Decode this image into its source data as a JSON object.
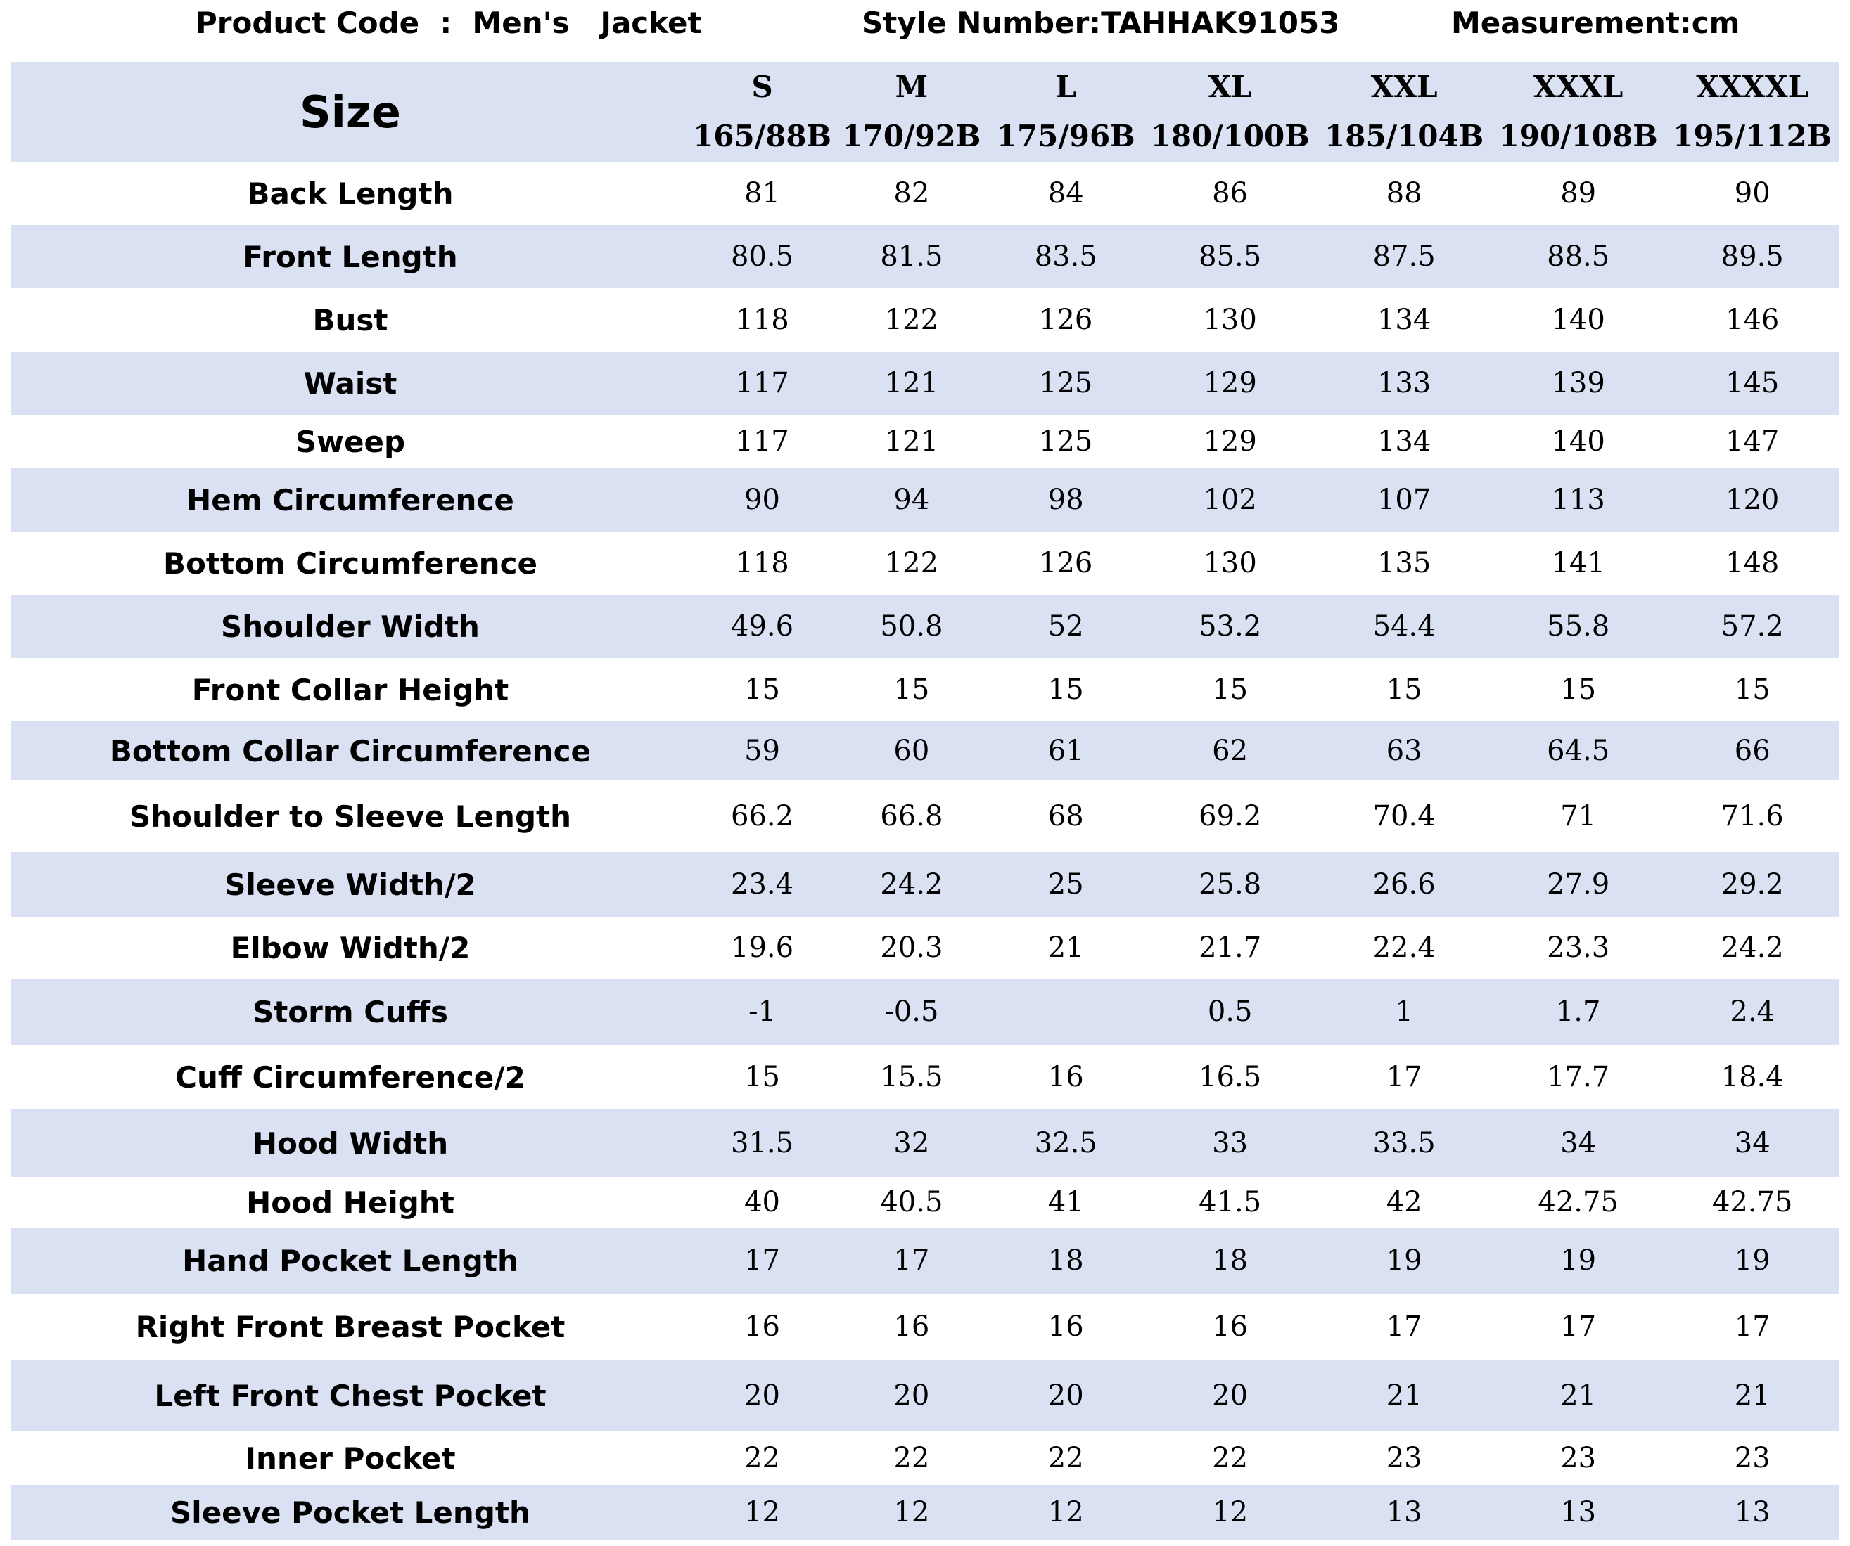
{
  "header": {
    "product_code": "Product Code  :  Men's   Jacket",
    "style_number": "Style Number:TAHHAK91053",
    "measurement": "Measurement:cm"
  },
  "table": {
    "size_label": "Size",
    "sizes": [
      {
        "name": "S",
        "spec": "165/88B"
      },
      {
        "name": "M",
        "spec": "170/92B"
      },
      {
        "name": "L",
        "spec": "175/96B"
      },
      {
        "name": "XL",
        "spec": "180/100B"
      },
      {
        "name": "XXL",
        "spec": "185/104B"
      },
      {
        "name": "XXXL",
        "spec": "190/108B"
      },
      {
        "name": "XXXXL",
        "spec": "195/112B"
      }
    ],
    "rows": [
      {
        "label": "Back Length",
        "values": [
          "81",
          "82",
          "84",
          "86",
          "88",
          "89",
          "90"
        ]
      },
      {
        "label": "Front Length",
        "values": [
          "80.5",
          "81.5",
          "83.5",
          "85.5",
          "87.5",
          "88.5",
          "89.5"
        ]
      },
      {
        "label": "Bust",
        "values": [
          "118",
          "122",
          "126",
          "130",
          "134",
          "140",
          "146"
        ]
      },
      {
        "label": "Waist",
        "values": [
          "117",
          "121",
          "125",
          "129",
          "133",
          "139",
          "145"
        ]
      },
      {
        "label": "Sweep",
        "values": [
          "117",
          "121",
          "125",
          "129",
          "134",
          "140",
          "147"
        ]
      },
      {
        "label": "Hem Circumference",
        "values": [
          "90",
          "94",
          "98",
          "102",
          "107",
          "113",
          "120"
        ]
      },
      {
        "label": "Bottom Circumference",
        "values": [
          "118",
          "122",
          "126",
          "130",
          "135",
          "141",
          "148"
        ]
      },
      {
        "label": "Shoulder Width",
        "values": [
          "49.6",
          "50.8",
          "52",
          "53.2",
          "54.4",
          "55.8",
          "57.2"
        ]
      },
      {
        "label": "Front Collar Height",
        "values": [
          "15",
          "15",
          "15",
          "15",
          "15",
          "15",
          "15"
        ]
      },
      {
        "label": "Bottom Collar Circumference",
        "values": [
          "59",
          "60",
          "61",
          "62",
          "63",
          "64.5",
          "66"
        ]
      },
      {
        "label": "Shoulder to Sleeve Length",
        "values": [
          "66.2",
          "66.8",
          "68",
          "69.2",
          "70.4",
          "71",
          "71.6"
        ]
      },
      {
        "label": "Sleeve Width/2",
        "values": [
          "23.4",
          "24.2",
          "25",
          "25.8",
          "26.6",
          "27.9",
          "29.2"
        ]
      },
      {
        "label": "Elbow Width/2",
        "values": [
          "19.6",
          "20.3",
          "21",
          "21.7",
          "22.4",
          "23.3",
          "24.2"
        ]
      },
      {
        "label": "Storm Cuffs",
        "values": [
          "-1",
          "-0.5",
          "",
          "0.5",
          "1",
          "1.7",
          "2.4"
        ]
      },
      {
        "label": "Cuff Circumference/2",
        "values": [
          "15",
          "15.5",
          "16",
          "16.5",
          "17",
          "17.7",
          "18.4"
        ]
      },
      {
        "label": "Hood Width",
        "values": [
          "31.5",
          "32",
          "32.5",
          "33",
          "33.5",
          "34",
          "34"
        ]
      },
      {
        "label": "Hood Height",
        "values": [
          "40",
          "40.5",
          "41",
          "41.5",
          "42",
          "42.75",
          "42.75"
        ]
      },
      {
        "label": "Hand Pocket Length",
        "values": [
          "17",
          "17",
          "18",
          "18",
          "19",
          "19",
          "19"
        ]
      },
      {
        "label": "Right Front Breast Pocket",
        "values": [
          "16",
          "16",
          "16",
          "16",
          "17",
          "17",
          "17"
        ]
      },
      {
        "label": "Left Front Chest Pocket",
        "values": [
          "20",
          "20",
          "20",
          "20",
          "21",
          "21",
          "21"
        ]
      },
      {
        "label": "Inner Pocket",
        "values": [
          "22",
          "22",
          "22",
          "22",
          "23",
          "23",
          "23"
        ]
      },
      {
        "label": "Sleeve Pocket Length",
        "values": [
          "12",
          "12",
          "12",
          "12",
          "13",
          "13",
          "13"
        ]
      }
    ]
  },
  "colors": {
    "row_shade": "#d9e1f2",
    "row_plain": "#ffffff",
    "text": "#000000"
  }
}
